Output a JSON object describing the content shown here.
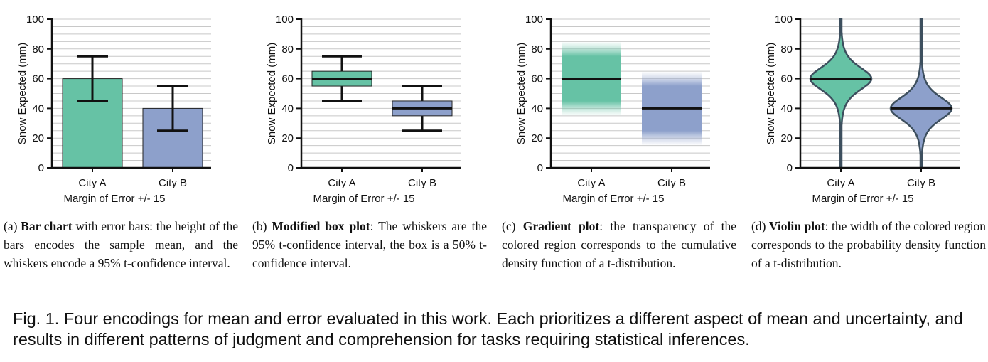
{
  "chart_data": [
    {
      "type": "bar",
      "categories": [
        "City A",
        "City B"
      ],
      "series": [
        {
          "values": [
            60,
            40
          ],
          "ci95": [
            [
              45,
              75
            ],
            [
              25,
              55
            ]
          ]
        }
      ],
      "colors": [
        "#66c2a5",
        "#8da0cb"
      ],
      "title": "",
      "xlabel": "Margin of Error +/- 15",
      "ylabel": "Snow Expected (mm)",
      "ylim": [
        0,
        100
      ],
      "yticks": [
        0,
        20,
        40,
        60,
        80,
        100
      ],
      "grid": true
    },
    {
      "type": "box",
      "categories": [
        "City A",
        "City B"
      ],
      "series": [
        {
          "median": [
            60,
            40
          ],
          "box50": [
            [
              55,
              65
            ],
            [
              35,
              45
            ]
          ],
          "whiskers95": [
            [
              45,
              75
            ],
            [
              25,
              55
            ]
          ]
        }
      ],
      "colors": [
        "#66c2a5",
        "#8da0cb"
      ],
      "title": "",
      "xlabel": "Margin of Error +/- 15",
      "ylabel": "Snow Expected (mm)",
      "ylim": [
        0,
        100
      ],
      "yticks": [
        0,
        20,
        40,
        60,
        80,
        100
      ],
      "grid": true
    },
    {
      "type": "gradient",
      "categories": [
        "City A",
        "City B"
      ],
      "series": [
        {
          "mean": [
            60,
            40
          ],
          "range": [
            [
              35,
              85
            ],
            [
              15,
              65
            ]
          ]
        }
      ],
      "colors": [
        "#66c2a5",
        "#8da0cb"
      ],
      "title": "",
      "xlabel": "Margin of Error +/- 15",
      "ylabel": "Snow Expected (mm)",
      "ylim": [
        0,
        100
      ],
      "yticks": [
        0,
        20,
        40,
        60,
        80,
        100
      ],
      "grid": true
    },
    {
      "type": "violin",
      "categories": [
        "City A",
        "City B"
      ],
      "series": [
        {
          "mean": [
            60,
            40
          ],
          "range": [
            [
              0,
              100
            ],
            [
              0,
              100
            ]
          ]
        }
      ],
      "colors": [
        "#66c2a5",
        "#8da0cb"
      ],
      "title": "",
      "xlabel": "Margin of Error +/- 15",
      "ylabel": "Snow Expected (mm)",
      "ylim": [
        0,
        100
      ],
      "yticks": [
        0,
        20,
        40,
        60,
        80,
        100
      ],
      "grid": true
    }
  ],
  "captions": [
    {
      "prefix": "(a) ",
      "bold": "Bar chart",
      "text": " with error bars: the height of the bars encodes the sample mean, and the whiskers encode a 95% t-confidence interval."
    },
    {
      "prefix": "(b) ",
      "bold": "Modified box plot",
      "text": ": The whiskers are the 95% t-confidence interval, the box is a 50% t-confidence interval."
    },
    {
      "prefix": "(c) ",
      "bold": "Gradient plot",
      "text": ": the transparency of the colored region corresponds to the cumulative density function of a t-distribution."
    },
    {
      "prefix": "(d) ",
      "bold": "Violin plot",
      "text": ": the width of the colored region corresponds to the probability density function of a t-distribution."
    }
  ],
  "figure_caption": "Fig. 1.  Four encodings for mean and error evaluated in this work.  Each prioritizes a different aspect of mean and uncertainty, and results in different patterns of judgment and comprehension for tasks requiring statistical inferences."
}
